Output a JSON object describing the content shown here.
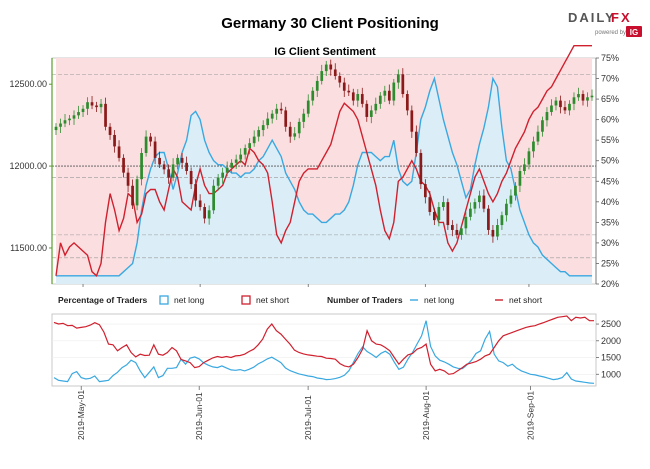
{
  "header": {
    "title": "Germany 30 Client Positioning",
    "subtitle": "IG Client Sentiment",
    "logo": {
      "brand_left": "DAILY",
      "brand_right": "FX",
      "powered_by": "powered by",
      "badge": "IG"
    }
  },
  "colors": {
    "net_long": "#3aa8e0",
    "net_short": "#d0202e",
    "long_fill": "#dbeef8",
    "short_fill": "#fbdfe0",
    "candle_up": "#2e8b2e",
    "candle_down": "#8b1a1a",
    "axis_green": "#5aa02c"
  },
  "legend": {
    "pct_title": "Percentage of Traders",
    "pct_long": "net long",
    "pct_short": "net short",
    "num_title": "Number of Traders",
    "num_long": "net long",
    "num_short": "net short"
  },
  "chart_data": [
    {
      "type": "candlestick",
      "title": "IG Client Sentiment",
      "left_axis_ticks": [
        "11500.00",
        "12000.00",
        "12500.00"
      ],
      "left_ylim": [
        11280,
        12660
      ],
      "right_axis_ticks": [
        "20%",
        "25%",
        "30%",
        "35%",
        "40%",
        "45%",
        "50%",
        "55%",
        "60%",
        "65%",
        "70%",
        "75%"
      ],
      "right_ylim": [
        20,
        75
      ],
      "reference_lines_price": [
        12560,
        12000,
        11930,
        11580,
        11440
      ],
      "price_close": [
        12240,
        12260,
        12280,
        12290,
        12310,
        12330,
        12350,
        12390,
        12370,
        12360,
        12380,
        12240,
        12190,
        12120,
        12050,
        11960,
        11880,
        11760,
        11920,
        12080,
        12180,
        12150,
        12050,
        12010,
        11980,
        11930,
        12010,
        12050,
        12020,
        11970,
        11890,
        11790,
        11750,
        11680,
        11730,
        11880,
        11930,
        11960,
        11990,
        12020,
        12040,
        12070,
        12110,
        12140,
        12180,
        12220,
        12250,
        12290,
        12320,
        12350,
        12340,
        12240,
        12180,
        12200,
        12270,
        12320,
        12400,
        12460,
        12520,
        12580,
        12620,
        12590,
        12550,
        12510,
        12460,
        12450,
        12400,
        12440,
        12380,
        12300,
        12340,
        12380,
        12430,
        12460,
        12400,
        12510,
        12560,
        12440,
        12340,
        12210,
        12080,
        11890,
        11810,
        11720,
        11670,
        11750,
        11780,
        11640,
        11610,
        11580,
        11620,
        11690,
        11740,
        11780,
        11820,
        11740,
        11610,
        11570,
        11640,
        11700,
        11770,
        11820,
        11880,
        11970,
        12010,
        12090,
        12150,
        12210,
        12280,
        12330,
        12370,
        12400,
        12360,
        12340,
        12380,
        12420,
        12440,
        12400,
        12420,
        12430
      ],
      "long_pct": [
        22,
        22,
        22,
        22,
        22,
        22,
        22,
        22,
        22,
        22,
        22,
        22,
        22,
        22,
        22,
        23,
        24,
        25,
        30,
        38,
        44,
        48,
        51,
        52,
        52,
        48,
        43,
        47,
        52,
        55,
        61,
        62,
        60,
        55,
        52,
        50,
        49,
        49,
        48,
        47,
        47,
        46,
        47,
        47,
        48,
        50,
        51,
        53,
        55,
        53,
        51,
        47,
        45,
        43,
        40,
        38,
        37,
        37,
        36,
        35,
        35,
        36,
        37,
        37,
        38,
        40,
        44,
        49,
        52,
        52,
        52,
        51,
        50,
        51,
        51,
        55,
        48,
        45,
        44,
        45,
        52,
        60,
        63,
        67,
        70,
        65,
        60,
        56,
        52,
        49,
        45,
        41,
        43,
        49,
        54,
        58,
        63,
        70,
        68,
        58,
        50,
        48,
        43,
        38,
        35,
        32,
        30,
        29,
        27,
        26,
        25,
        24,
        23,
        23,
        22,
        22,
        22,
        22,
        22,
        22
      ],
      "short_pct": [
        22,
        30,
        27,
        29,
        30,
        29,
        28,
        27,
        23,
        22,
        25,
        35,
        42,
        38,
        33,
        36,
        42,
        41,
        35,
        37,
        42,
        43,
        43,
        40,
        38,
        43,
        48,
        46,
        40,
        39,
        38,
        44,
        48,
        44,
        42,
        42,
        43,
        44,
        47,
        48,
        49,
        50,
        49,
        53,
        52,
        50,
        49,
        47,
        40,
        32,
        30,
        33,
        35,
        40,
        45,
        47,
        48,
        48,
        48,
        50,
        52,
        54,
        58,
        62,
        64,
        63,
        62,
        60,
        56,
        52,
        48,
        44,
        38,
        33,
        31,
        35,
        45,
        46,
        48,
        50,
        48,
        45,
        44,
        42,
        38,
        35,
        35,
        30,
        28,
        30,
        34,
        38,
        42,
        46,
        48,
        45,
        42,
        40,
        42,
        45,
        47,
        50,
        53,
        55,
        57,
        60,
        62,
        63,
        65,
        67,
        68,
        70,
        72,
        74,
        76,
        78,
        78,
        78,
        78,
        78
      ]
    },
    {
      "type": "line",
      "title": "Number of Traders",
      "y_axis_ticks": [
        "1000",
        "1500",
        "2000",
        "2500"
      ],
      "ylim": [
        650,
        2800
      ],
      "x_tick_labels": [
        "2019-May-01",
        "2019-Jun-01",
        "2019-Jul-01",
        "2019-Aug-01",
        "2019-Sep-01"
      ],
      "x_tick_index": [
        6,
        32,
        56,
        82,
        105
      ],
      "series": [
        {
          "name": "net long",
          "values": [
            900,
            820,
            800,
            780,
            1020,
            1080,
            900,
            860,
            880,
            950,
            780,
            800,
            820,
            960,
            1060,
            1200,
            1280,
            1420,
            1350,
            1100,
            900,
            1060,
            1220,
            900,
            960,
            1180,
            1180,
            1200,
            1450,
            1300,
            1480,
            1520,
            1460,
            1340,
            1270,
            1220,
            1200,
            1250,
            1190,
            1130,
            1120,
            1140,
            1100,
            1150,
            1210,
            1310,
            1380,
            1460,
            1510,
            1430,
            1350,
            1190,
            1110,
            1060,
            1010,
            980,
            950,
            930,
            890,
            870,
            840,
            850,
            870,
            910,
            970,
            1110,
            1360,
            1620,
            1820,
            1680,
            1600,
            1500,
            1620,
            1690,
            1600,
            1360,
            1150,
            1210,
            1450,
            1650,
            1900,
            2150,
            2600,
            1830,
            1550,
            1420,
            1370,
            1300,
            1220,
            1180,
            1170,
            1280,
            1420,
            1620,
            1700,
            2050,
            2280,
            1600,
            1400,
            1350,
            1240,
            1300,
            1180,
            1100,
            1050,
            1000,
            980,
            950,
            920,
            880,
            840,
            860,
            900,
            1050,
            860,
            800,
            780,
            760,
            740,
            730
          ]
        },
        {
          "name": "net short",
          "values": [
            2550,
            2500,
            2520,
            2450,
            2460,
            2380,
            2400,
            2420,
            2470,
            2540,
            2480,
            2260,
            1900,
            1880,
            1700,
            1800,
            1880,
            1650,
            1520,
            1600,
            1560,
            1570,
            1880,
            1600,
            1570,
            1650,
            1800,
            1700,
            1440,
            1400,
            1350,
            1200,
            1230,
            1350,
            1420,
            1490,
            1530,
            1500,
            1530,
            1500,
            1550,
            1560,
            1600,
            1680,
            1750,
            1880,
            2050,
            2350,
            2500,
            2300,
            2200,
            2050,
            1900,
            1720,
            1650,
            1610,
            1580,
            1560,
            1540,
            1530,
            1480,
            1470,
            1450,
            1320,
            1250,
            1220,
            1300,
            1500,
            1750,
            2300,
            2000,
            1900,
            1880,
            1800,
            1700,
            1500,
            1300,
            1450,
            1580,
            1620,
            1750,
            1800,
            1900,
            1300,
            1100,
            1150,
            1100,
            1000,
            1020,
            1110,
            1200,
            1300,
            1340,
            1380,
            1450,
            1550,
            1600,
            1800,
            2000,
            2150,
            2200,
            2250,
            2300,
            2350,
            2400,
            2430,
            2450,
            2500,
            2550,
            2600,
            2650,
            2700,
            2720,
            2740,
            2600,
            2700,
            2680,
            2700,
            2600,
            2600
          ]
        }
      ]
    }
  ]
}
